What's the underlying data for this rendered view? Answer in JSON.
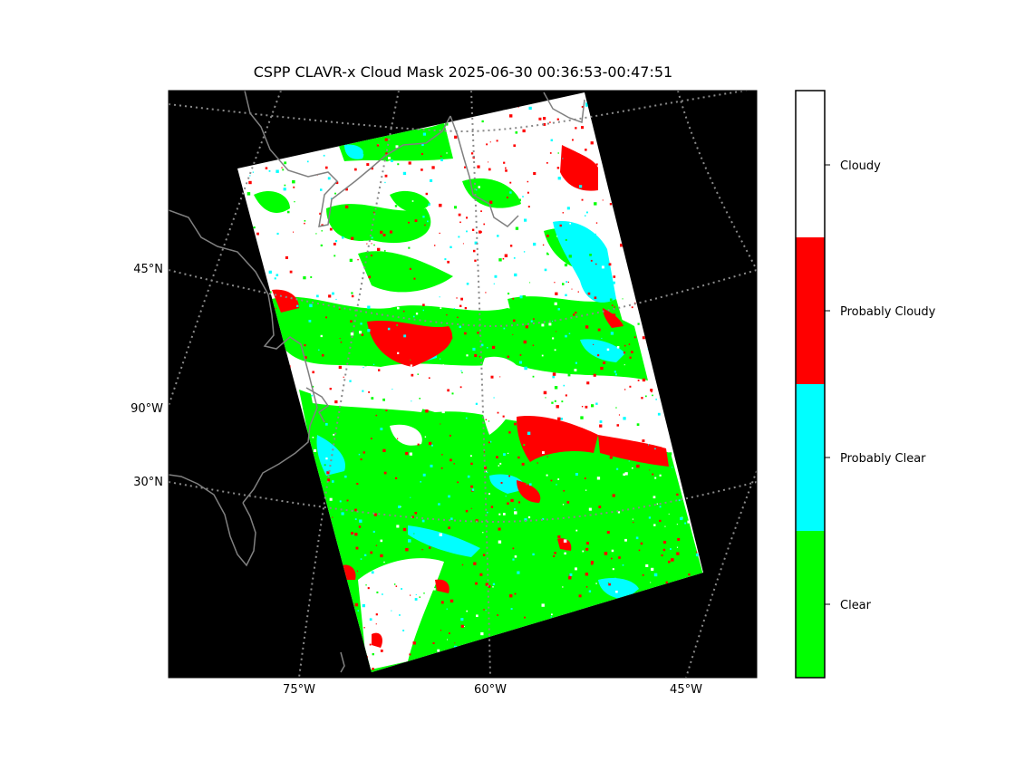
{
  "title": "CSPP CLAVR-x Cloud Mask 2025-06-30 00:36:53-00:47:51",
  "map": {
    "background_color": "#000000",
    "coastline_color": "#808080",
    "graticule_color": "#8a8a8a",
    "lat_labels": [
      "45°N",
      "90°W",
      "30°N"
    ],
    "lon_labels": [
      "75°W",
      "60°W",
      "45°W"
    ]
  },
  "legend": {
    "classes": [
      {
        "label": "Cloudy",
        "color": "#ffffff"
      },
      {
        "label": "Probably Cloudy",
        "color": "#ff0000"
      },
      {
        "label": "Probably Clear",
        "color": "#00ffff"
      },
      {
        "label": "Clear",
        "color": "#00ff00"
      }
    ]
  }
}
